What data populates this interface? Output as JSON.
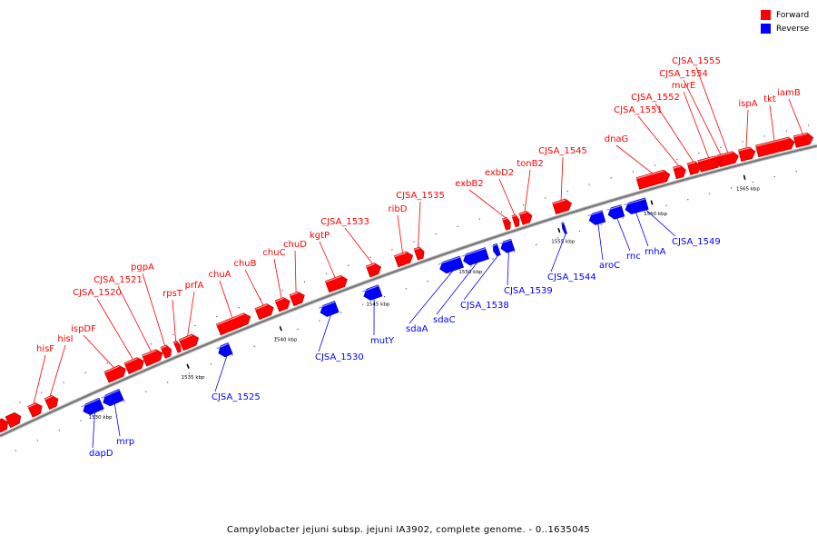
{
  "caption": "Campylobacter jejuni subsp. jejuni IA3902, complete genome. - 0..1635045",
  "legend": [
    {
      "label": "Forward",
      "color": "#ff0000"
    },
    {
      "label": "Reverse",
      "color": "#0000ff"
    }
  ],
  "colors": {
    "forward": "#ff0000",
    "reverse": "#0000ff",
    "axis": "#777777"
  },
  "ticks": [
    {
      "pos": 1530,
      "label": "1530 kbp"
    },
    {
      "pos": 1535,
      "label": "1535 kbp"
    },
    {
      "pos": 1540,
      "label": "1540 kbp"
    },
    {
      "pos": 1545,
      "label": "1545 kbp"
    },
    {
      "pos": 1550,
      "label": "1550 kbp"
    },
    {
      "pos": 1555,
      "label": "1555 kbp"
    },
    {
      "pos": 1560,
      "label": "1560 kbp"
    },
    {
      "pos": 1565,
      "label": "1565 kbp"
    }
  ],
  "forward_genes": [
    {
      "name": "hisF"
    },
    {
      "name": "hisI"
    },
    {
      "name": "ispDF"
    },
    {
      "name": "CJSA_1520"
    },
    {
      "name": "CJSA_1521"
    },
    {
      "name": "pgpA"
    },
    {
      "name": "rpsT"
    },
    {
      "name": "prfA"
    },
    {
      "name": "chuA"
    },
    {
      "name": "chuB"
    },
    {
      "name": "chuC"
    },
    {
      "name": "chuD"
    },
    {
      "name": "kgtP"
    },
    {
      "name": "CJSA_1533"
    },
    {
      "name": "ribD"
    },
    {
      "name": "CJSA_1535"
    },
    {
      "name": "exbB2"
    },
    {
      "name": "exbD2"
    },
    {
      "name": "tonB2"
    },
    {
      "name": "CJSA_1545"
    },
    {
      "name": "dnaG"
    },
    {
      "name": "CJSA_1551"
    },
    {
      "name": "CJSA_1552"
    },
    {
      "name": "murE"
    },
    {
      "name": "CJSA_1554"
    },
    {
      "name": "CJSA_1555"
    },
    {
      "name": "ispA"
    },
    {
      "name": "tkt"
    },
    {
      "name": "iamB"
    }
  ],
  "reverse_genes": [
    {
      "name": "dapD"
    },
    {
      "name": "mrp"
    },
    {
      "name": "CJSA_1525"
    },
    {
      "name": "CJSA_1530"
    },
    {
      "name": "mutY"
    },
    {
      "name": "sdaA"
    },
    {
      "name": "sdaC"
    },
    {
      "name": "CJSA_1538"
    },
    {
      "name": "CJSA_1539"
    },
    {
      "name": "CJSA_1544"
    },
    {
      "name": "aroC"
    },
    {
      "name": "rnc"
    },
    {
      "name": "rnhA"
    },
    {
      "name": "CJSA_1549"
    }
  ]
}
